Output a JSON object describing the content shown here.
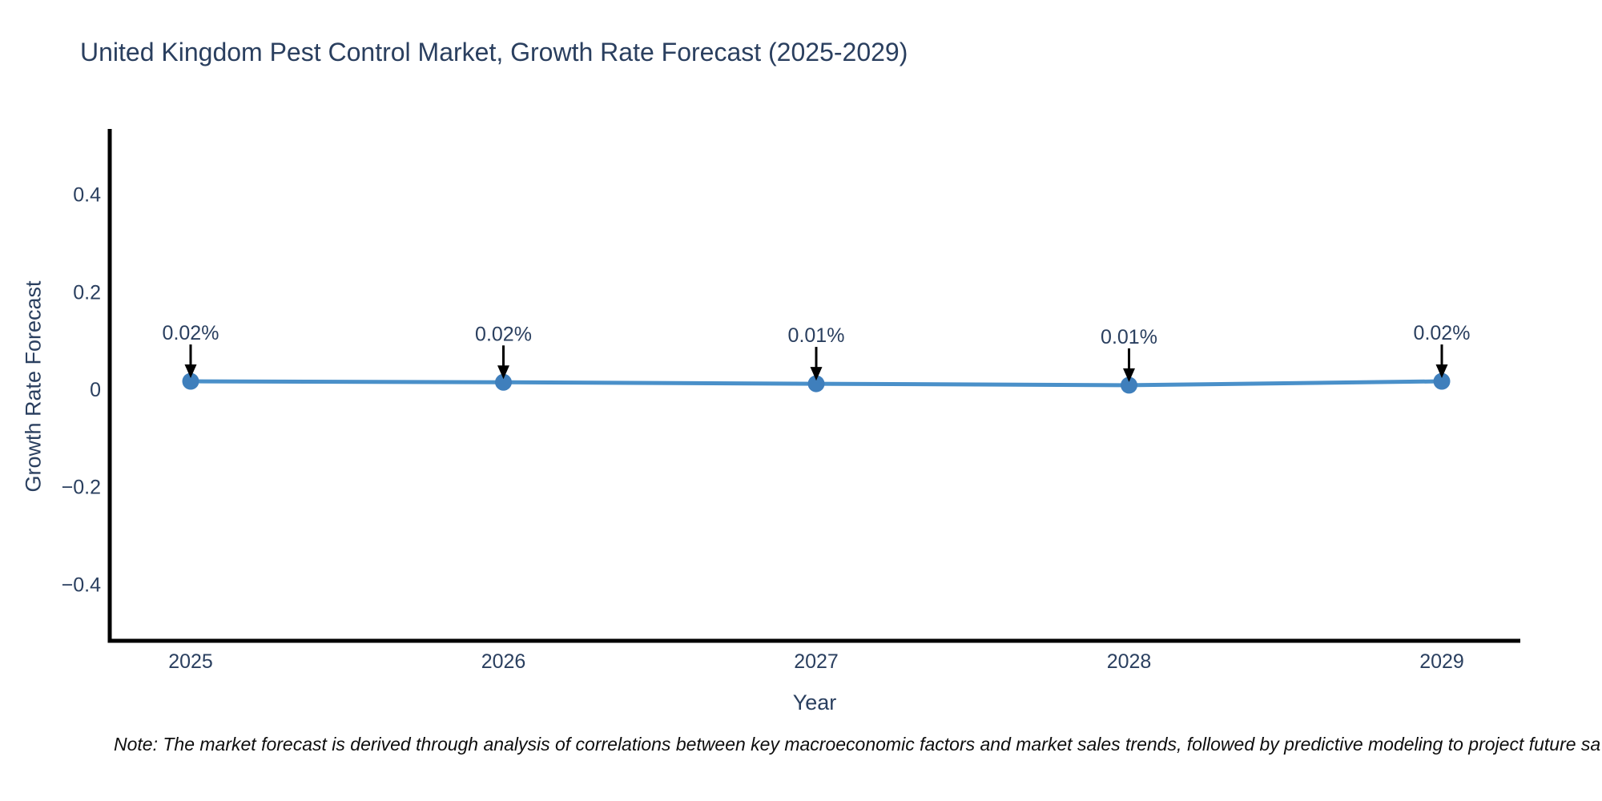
{
  "title": "United Kingdom Pest Control Market, Growth Rate Forecast (2025-2029)",
  "footnote": "Note: The market forecast is derived through analysis of correlations between key macroeconomic factors and market sales trends, followed by predictive modeling to project future sa",
  "chart_data": {
    "type": "line",
    "title": "United Kingdom Pest Control Market, Growth Rate Forecast (2025-2029)",
    "xlabel": "Year",
    "ylabel": "Growth Rate Forecast",
    "x": [
      2025,
      2026,
      2027,
      2028,
      2029
    ],
    "x_tick_labels": [
      "2025",
      "2026",
      "2027",
      "2028",
      "2029"
    ],
    "values": [
      0.018,
      0.016,
      0.013,
      0.01,
      0.018
    ],
    "point_labels": [
      "0.02%",
      "0.02%",
      "0.01%",
      "0.01%",
      "0.02%"
    ],
    "y_ticks": [
      0.4,
      0.2,
      0,
      -0.2,
      -0.4
    ],
    "y_tick_labels": [
      "0.4",
      "0.2",
      "0",
      "−0.2",
      "−0.4"
    ],
    "ylim": [
      -0.515,
      0.535
    ],
    "grid": false,
    "legend": false,
    "colors": {
      "line": "#4a90c9",
      "marker": "#3f7fbc",
      "axis": "#000000",
      "text": "#2a3f5f",
      "annotation_arrow": "#000000",
      "footnote_text": "#0e0e0e",
      "background": "#ffffff"
    }
  }
}
